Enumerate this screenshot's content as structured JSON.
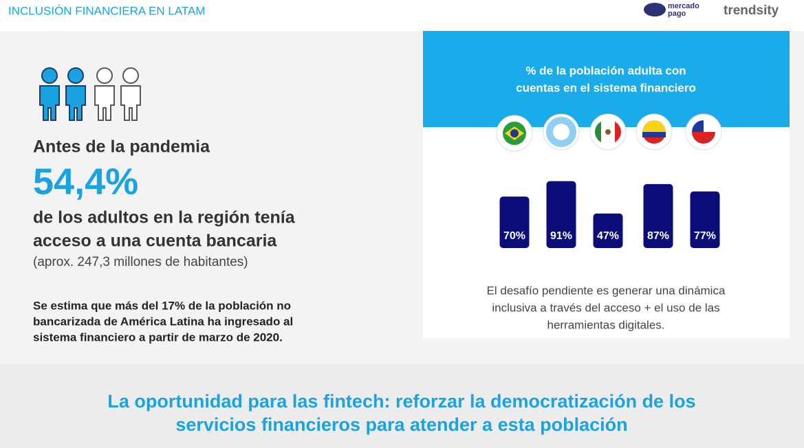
{
  "header": {
    "title": "INCLUSIÓN FINANCIERA EN LATAM",
    "logo_1": [
      "mercado",
      "pago"
    ],
    "logo_2": "trendsity"
  },
  "left": {
    "lead": "Antes de la pandemia",
    "stat": "54,4%",
    "text": [
      "de los adultos en la región tenía",
      "acceso a una cuenta bancaria"
    ],
    "note": "(aprox. 247,3 millones de habitantes)",
    "paragraph": [
      "Se estima que más del 17% de la población no",
      "bancarizada de América Latina ha ingresado al",
      "sistema financiero a partir de marzo de 2020."
    ]
  },
  "chart": {
    "type": "bar",
    "title": [
      "% de la población adulta con",
      "cuentas en el sistema financiero"
    ],
    "values": [
      70,
      91,
      47,
      87,
      77
    ],
    "value_labels": [
      "70%",
      "91%",
      "47%",
      "87%",
      "77%"
    ],
    "color": "#0a0d78",
    "caption": [
      "El desafío pendiente es generar una dinámica",
      "inclusiva a través del acceso + el uso de las",
      "herramientas digitales."
    ]
  },
  "footer": [
    "La oportunidad para las fintech: reforzar la democratización de los",
    "servicios financieros para atender a esta población"
  ]
}
